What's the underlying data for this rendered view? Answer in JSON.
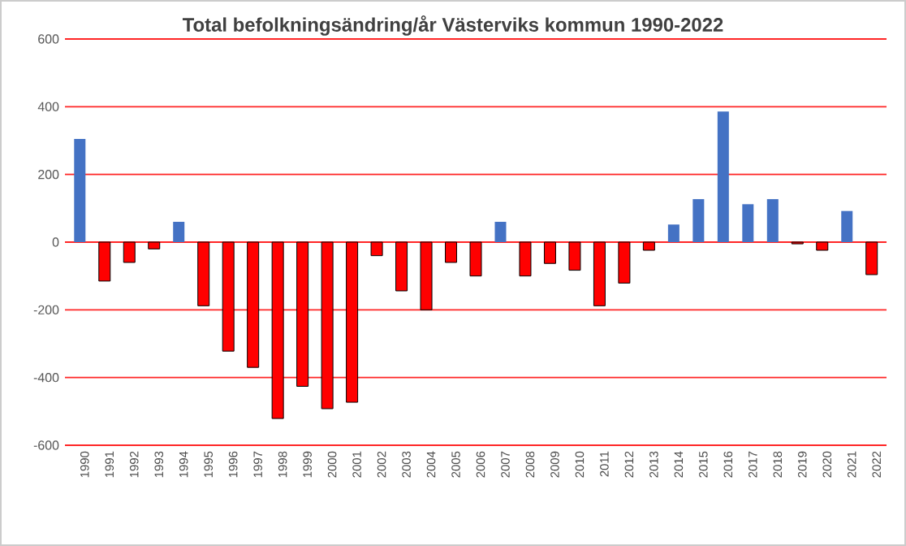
{
  "chart_data": {
    "type": "bar",
    "title": "Total befolkningsändring/år Västerviks kommun 1990-2022",
    "categories": [
      "1990",
      "1991",
      "1992",
      "1993",
      "1994",
      "1995",
      "1996",
      "1997",
      "1998",
      "1999",
      "2000",
      "2001",
      "2002",
      "2003",
      "2004",
      "2005",
      "2006",
      "2007",
      "2008",
      "2009",
      "2010",
      "2011",
      "2012",
      "2013",
      "2014",
      "2015",
      "2016",
      "2017",
      "2018",
      "2019",
      "2020",
      "2021",
      "2022"
    ],
    "values": [
      305,
      -115,
      -60,
      -20,
      60,
      -188,
      -322,
      -370,
      -521,
      -426,
      -492,
      -473,
      -40,
      -144,
      -200,
      -60,
      -100,
      60,
      -100,
      -63,
      -83,
      -188,
      -121,
      -24,
      52,
      127,
      386,
      112,
      127,
      -5,
      -24,
      92,
      -96
    ],
    "colors": [
      "#4472c4",
      "#ff0000",
      "#ff0000",
      "#ff0000",
      "#4472c4",
      "#ff0000",
      "#ff0000",
      "#ff0000",
      "#ff0000",
      "#ff0000",
      "#ff0000",
      "#ff0000",
      "#ff0000",
      "#ff0000",
      "#ff0000",
      "#ff0000",
      "#ff0000",
      "#4472c4",
      "#ff0000",
      "#ff0000",
      "#ff0000",
      "#ff0000",
      "#ff0000",
      "#ff0000",
      "#4472c4",
      "#4472c4",
      "#4472c4",
      "#4472c4",
      "#4472c4",
      "#ff0000",
      "#ff0000",
      "#4472c4",
      "#ff0000"
    ],
    "ylim": [
      -600,
      600
    ],
    "yticks": [
      -600,
      -400,
      -200,
      0,
      200,
      400,
      600
    ],
    "grid": "y"
  }
}
